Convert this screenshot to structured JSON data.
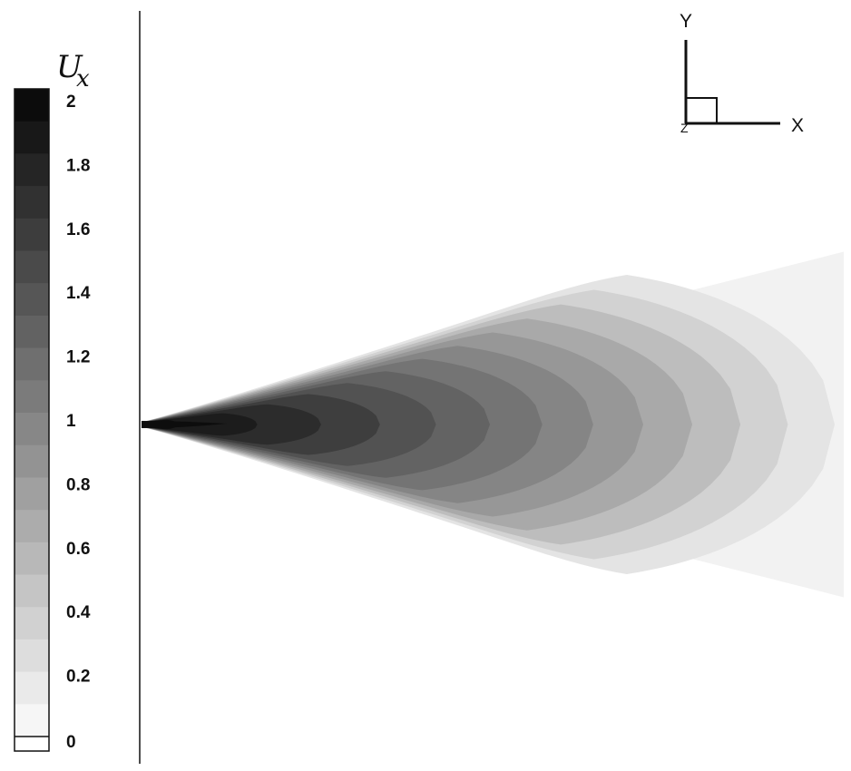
{
  "legend": {
    "title_main": "U",
    "title_sub": "x",
    "range": [
      0,
      2
    ],
    "levels": 20,
    "tick_labels": [
      "2",
      "1.8",
      "1.6",
      "1.4",
      "1.2",
      "1",
      "0.8",
      "0.6",
      "0.4",
      "0.2",
      "0"
    ]
  },
  "axes_triad": {
    "y_label": "Y",
    "x_label": "X",
    "z_label": "Z"
  },
  "colors": {
    "background": "#ffffff",
    "outline": "#111111",
    "shade_dark": "#0d0d0d",
    "shade_light": "#f4f4f4"
  },
  "jet_contour_bands": [
    {
      "level": 0.1,
      "shade": "#f2f2f2"
    },
    {
      "level": 0.2,
      "shade": "#e4e4e4"
    },
    {
      "level": 0.3,
      "shade": "#d2d2d2"
    },
    {
      "level": 0.4,
      "shade": "#bdbdbd"
    },
    {
      "level": 0.5,
      "shade": "#a9a9a9"
    },
    {
      "level": 0.6,
      "shade": "#979797"
    },
    {
      "level": 0.7,
      "shade": "#858585"
    },
    {
      "level": 0.8,
      "shade": "#747474"
    },
    {
      "level": 0.9,
      "shade": "#636363"
    },
    {
      "level": 1.0,
      "shade": "#525252"
    },
    {
      "level": 1.2,
      "shade": "#3e3e3e"
    },
    {
      "level": 1.4,
      "shade": "#2c2c2c"
    },
    {
      "level": 1.6,
      "shade": "#1c1c1c"
    },
    {
      "level": 1.8,
      "shade": "#0e0e0e"
    }
  ]
}
